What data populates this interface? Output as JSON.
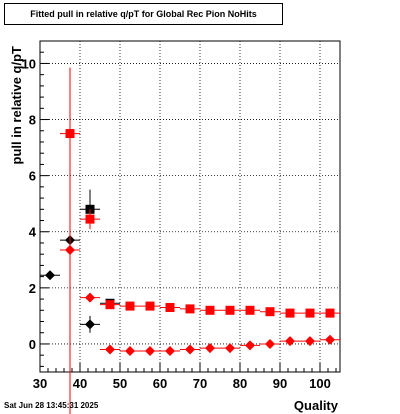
{
  "chart_data": {
    "type": "scatter",
    "title": "Fitted pull in relative q/pT for Global Rec Pion NoHits",
    "xlabel": "Quality",
    "ylabel": "pull in relative q/pT",
    "xlim": [
      30,
      105
    ],
    "ylim": [
      -1,
      10.8
    ],
    "x_ticks": [
      30,
      40,
      50,
      60,
      70,
      80,
      90,
      100
    ],
    "y_ticks": [
      0,
      2,
      4,
      6,
      8,
      10
    ],
    "grid": true,
    "series": [
      {
        "marker": "square",
        "color": "#000000",
        "points": [
          {
            "x": 42.5,
            "y": 4.8,
            "yerr": 0.7
          },
          {
            "x": 47.5,
            "y": 1.45,
            "yerr": 0.1
          }
        ]
      },
      {
        "marker": "square",
        "color": "#ff0000",
        "points": [
          {
            "x": 37.5,
            "y": 7.5,
            "yerr": 2.3
          },
          {
            "x": 42.5,
            "y": 4.45,
            "yerr": 0.35
          },
          {
            "x": 47.5,
            "y": 1.4,
            "yerr": 0.1
          },
          {
            "x": 52.5,
            "y": 1.35,
            "yerr": 0.05
          },
          {
            "x": 57.5,
            "y": 1.35,
            "yerr": 0.05
          },
          {
            "x": 62.5,
            "y": 1.3,
            "yerr": 0.05
          },
          {
            "x": 67.5,
            "y": 1.25,
            "yerr": 0.05
          },
          {
            "x": 72.5,
            "y": 1.2,
            "yerr": 0.05
          },
          {
            "x": 77.5,
            "y": 1.2,
            "yerr": 0.05
          },
          {
            "x": 82.5,
            "y": 1.2,
            "yerr": 0.05
          },
          {
            "x": 87.5,
            "y": 1.15,
            "yerr": 0.05
          },
          {
            "x": 92.5,
            "y": 1.1,
            "yerr": 0.05
          },
          {
            "x": 97.5,
            "y": 1.1,
            "yerr": 0.05
          },
          {
            "x": 102.5,
            "y": 1.1,
            "yerr": 0.05
          }
        ]
      },
      {
        "marker": "diamond",
        "color": "#000000",
        "points": [
          {
            "x": 32.5,
            "y": 2.45,
            "yerr": 0.1
          },
          {
            "x": 37.5,
            "y": 3.7,
            "yerr": 0.1
          },
          {
            "x": 42.5,
            "y": 0.7,
            "yerr": 0.3
          }
        ]
      },
      {
        "marker": "diamond",
        "color": "#ff0000",
        "points": [
          {
            "x": 37.5,
            "y": 3.35,
            "yerr": 6.5
          },
          {
            "x": 42.5,
            "y": 1.65,
            "yerr": 0.1
          },
          {
            "x": 47.5,
            "y": -0.2,
            "yerr": 0.05
          },
          {
            "x": 52.5,
            "y": -0.25,
            "yerr": 0.05
          },
          {
            "x": 57.5,
            "y": -0.25,
            "yerr": 0.05
          },
          {
            "x": 62.5,
            "y": -0.25,
            "yerr": 0.05
          },
          {
            "x": 67.5,
            "y": -0.2,
            "yerr": 0.05
          },
          {
            "x": 72.5,
            "y": -0.15,
            "yerr": 0.05
          },
          {
            "x": 77.5,
            "y": -0.15,
            "yerr": 0.05
          },
          {
            "x": 82.5,
            "y": -0.05,
            "yerr": 0.05
          },
          {
            "x": 87.5,
            "y": 0.0,
            "yerr": 0.05
          },
          {
            "x": 92.5,
            "y": 0.1,
            "yerr": 0.05
          },
          {
            "x": 97.5,
            "y": 0.1,
            "yerr": 0.05
          },
          {
            "x": 102.5,
            "y": 0.15,
            "yerr": 0.05
          }
        ]
      }
    ],
    "bin_half_width": 2.5
  },
  "footer": {
    "date": "Sat Jun 28 13:45:31 2025"
  }
}
